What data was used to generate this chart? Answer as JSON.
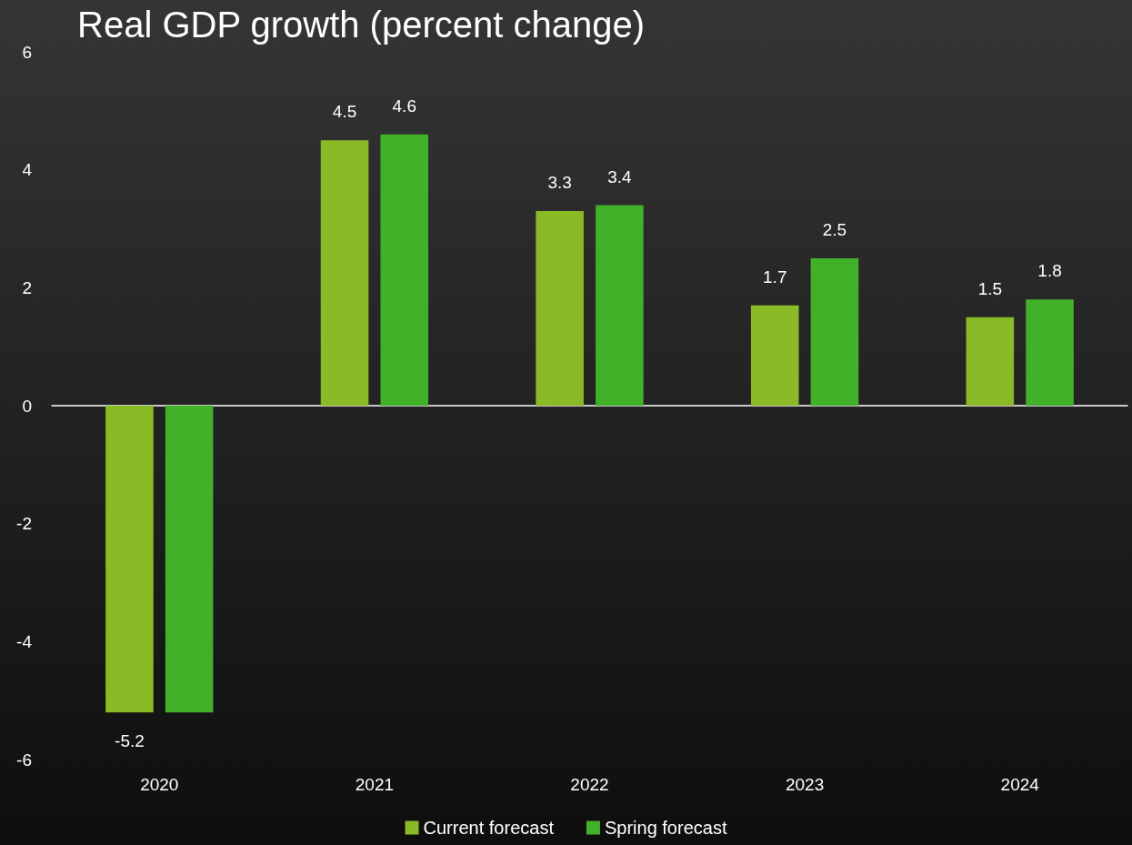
{
  "chart_data": {
    "type": "bar",
    "title": "Real GDP growth (percent change)",
    "categories": [
      "2020",
      "2021",
      "2022",
      "2023",
      "2024"
    ],
    "series": [
      {
        "name": "Current forecast",
        "color": "#8aba26",
        "values": [
          -5.2,
          4.5,
          3.3,
          1.7,
          1.5
        ],
        "value_labels": [
          "-5.2",
          "4.5",
          "3.3",
          "1.7",
          "1.5"
        ]
      },
      {
        "name": "Spring forecast",
        "color": "#43b02a",
        "values": [
          -5.2,
          4.6,
          3.4,
          2.5,
          1.8
        ],
        "value_labels": [
          null,
          "4.6",
          "3.4",
          "2.5",
          "1.8"
        ]
      }
    ],
    "ylim": [
      -6,
      6
    ],
    "yticks": [
      -6,
      -4,
      -2,
      0,
      2,
      4,
      6
    ],
    "legend": "bottom"
  }
}
